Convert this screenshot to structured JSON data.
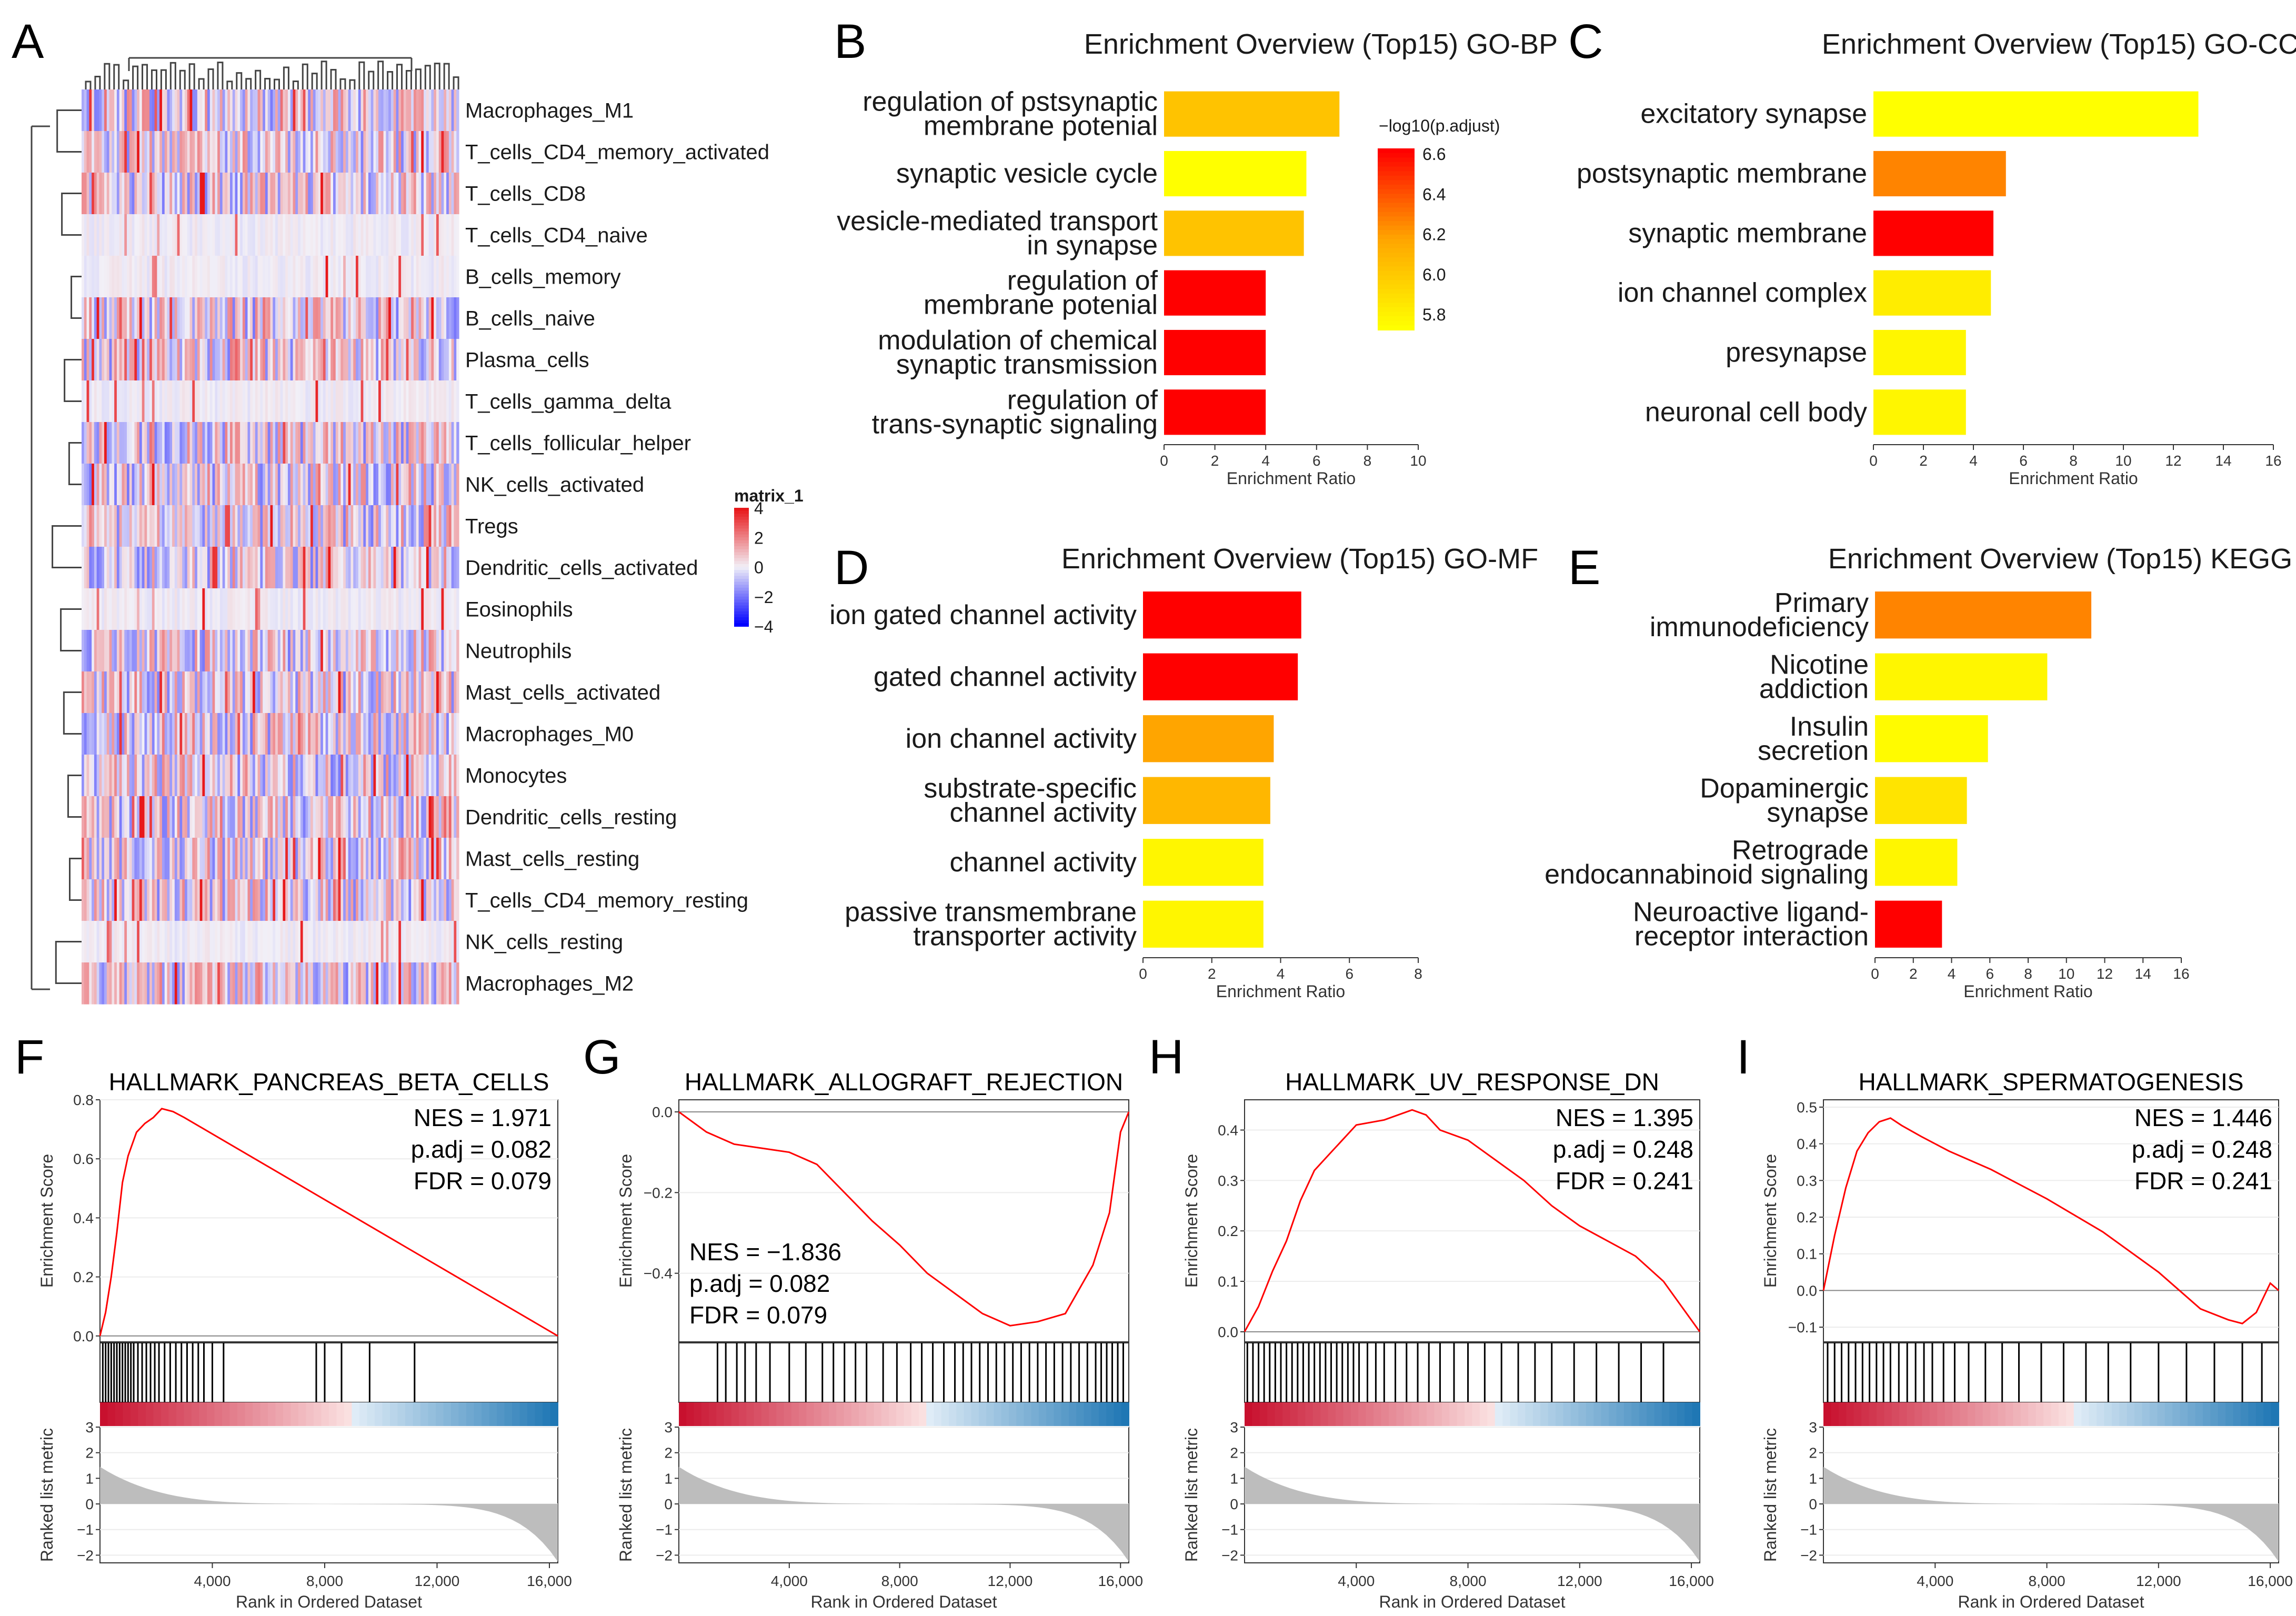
{
  "panel_letters": [
    "A",
    "B",
    "C",
    "D",
    "E",
    "F",
    "G",
    "H",
    "I"
  ],
  "colors": {
    "high": "#ff0000",
    "mid": "#ffa500",
    "low": "#ffff00",
    "hm_high": "#e8181a",
    "hm_mid": "#f2f0f7",
    "hm_low": "#0000ff",
    "gsea_line": "#ff0000",
    "gsea_red": "#c8102e",
    "gsea_blue": "#1f77b4",
    "gray": "#bdbdbd"
  },
  "chart_data": [
    {
      "id": "A",
      "type": "heatmap",
      "title": "",
      "rows": [
        "Macrophages_M1",
        "T_cells_CD4_memory_activated",
        "T_cells_CD8",
        "T_cells_CD4_naive",
        "B_cells_memory",
        "B_cells_naive",
        "Plasma_cells",
        "T_cells_gamma_delta",
        "T_cells_follicular_helper",
        "NK_cells_activated",
        "Tregs",
        "Dendritic_cells_activated",
        "Eosinophils",
        "Neutrophils",
        "Mast_cells_activated",
        "Macrophages_M0",
        "Monocytes",
        "Dendritic_cells_resting",
        "Mast_cells_resting",
        "T_cells_CD4_memory_resting",
        "NK_cells_resting",
        "Macrophages_M2"
      ],
      "legend": {
        "title": "matrix_1",
        "ticks": [
          "4",
          "2",
          "0",
          "−2",
          "−4"
        ],
        "range": [
          -4,
          4
        ]
      }
    },
    {
      "id": "B",
      "type": "bar",
      "title": "Enrichment Overview (Top15) GO-BP",
      "xlabel": "Enrichment Ratio",
      "xticks": [
        "0",
        "2",
        "4",
        "6",
        "8",
        "10"
      ],
      "xlim": [
        0,
        10
      ],
      "categories": [
        "regulation of pstsynaptic\nmembrane potenial",
        "synaptic vesicle cycle",
        "vesicle-mediated transport\nin synapse",
        "regulation of\nmembrane potenial",
        "modulation of chemical\nsynaptic transmission",
        "regulation of\ntrans-synaptic signaling"
      ],
      "values": [
        6.9,
        5.6,
        5.5,
        4.0,
        4.0,
        4.0
      ],
      "color_values": [
        6.0,
        5.7,
        6.0,
        6.6,
        6.6,
        6.6
      ],
      "legend": {
        "title": "−log10(p.adjust)",
        "ticks": [
          "6.6",
          "6.4",
          "6.2",
          "6.0",
          "5.8"
        ],
        "range": [
          5.7,
          6.6
        ]
      }
    },
    {
      "id": "C",
      "type": "bar",
      "title": "Enrichment Overview (Top15) GO-CC",
      "xlabel": "Enrichment Ratio",
      "xticks": [
        "0",
        "2",
        "4",
        "6",
        "8",
        "10",
        "12",
        "14",
        "16"
      ],
      "xlim": [
        0,
        16
      ],
      "categories": [
        "excitatory synapse",
        "postsynaptic membrane",
        "synaptic membrane",
        "ion channel complex",
        "presynapse",
        "neuronal cell body"
      ],
      "values": [
        13.0,
        5.3,
        4.8,
        4.7,
        3.7,
        3.7
      ],
      "color_values": [
        0.0,
        0.6,
        1.0,
        0.1,
        0.05,
        0.05
      ]
    },
    {
      "id": "D",
      "type": "bar",
      "title": "Enrichment Overview (Top15) GO-MF",
      "xlabel": "Enrichment Ratio",
      "xticks": [
        "0",
        "2",
        "4",
        "6",
        "8"
      ],
      "xlim": [
        0,
        8
      ],
      "categories": [
        "ion gated channel activity",
        "gated channel activity",
        "ion channel activity",
        "substrate-specific\nchannel activity",
        "channel activity",
        "passive transmembrane\ntransporter activity"
      ],
      "values": [
        4.6,
        4.5,
        3.8,
        3.7,
        3.5,
        3.5
      ],
      "color_values": [
        1.0,
        1.0,
        0.5,
        0.4,
        0.05,
        0.05
      ]
    },
    {
      "id": "E",
      "type": "bar",
      "title": "Enrichment Overview (Top15) KEGG",
      "xlabel": "Enrichment Ratio",
      "xticks": [
        "0",
        "2",
        "4",
        "6",
        "8",
        "10",
        "12",
        "14",
        "16"
      ],
      "xlim": [
        0,
        16
      ],
      "categories": [
        "Primary\nimmunodeficiency",
        "Nicotine\naddiction",
        "Insulin\nsecretion",
        "Dopaminergic\nsynapse",
        "Retrograde\nendocannabinoid signaling",
        "Neuroactive ligand-\nreceptor interaction"
      ],
      "values": [
        11.3,
        9.0,
        5.9,
        4.8,
        4.3,
        3.5
      ],
      "color_values": [
        0.6,
        0.05,
        0.02,
        0.15,
        0.05,
        1.0
      ]
    },
    {
      "id": "F",
      "type": "line",
      "title": "HALLMARK_PANCREAS_BETA_CELLS",
      "stats": [
        "NES = 1.971",
        "p.adj = 0.082",
        "FDR = 0.079"
      ],
      "ylabel": "Enrichment Score",
      "ylabel2": "Ranked list metric",
      "xlabel": "Rank in Ordered Dataset",
      "yticks": [
        "0.0",
        "0.2",
        "0.4",
        "0.6",
        "0.8"
      ],
      "ylim": [
        -0.02,
        0.8
      ],
      "xticks": [
        "4,000",
        "8,000",
        "12,000",
        "16,000"
      ],
      "xlim": [
        0,
        16300
      ],
      "x": [
        0,
        200,
        400,
        600,
        800,
        1000,
        1300,
        1600,
        1900,
        2200,
        2600,
        3000,
        16300
      ],
      "y": [
        0,
        0.08,
        0.2,
        0.35,
        0.52,
        0.61,
        0.69,
        0.72,
        0.74,
        0.77,
        0.76,
        0.74,
        0.0
      ],
      "hits_x": [
        100,
        200,
        300,
        400,
        500,
        600,
        700,
        800,
        900,
        1000,
        1100,
        1200,
        1350,
        1500,
        1650,
        1800,
        1950,
        2100,
        2300,
        2500,
        2700,
        2900,
        3100,
        3300,
        3500,
        3700,
        4000,
        4400,
        7700,
        8000,
        8600,
        9600,
        11200
      ],
      "metric_ylim": [
        -2.3,
        3
      ]
    },
    {
      "id": "G",
      "type": "line",
      "title": "HALLMARK_ALLOGRAFT_REJECTION",
      "stats": [
        "NES = −1.836",
        "p.adj = 0.082",
        "FDR = 0.079"
      ],
      "ylabel": "Enrichment Score",
      "ylabel2": "Ranked list metric",
      "xlabel": "Rank in Ordered Dataset",
      "yticks": [
        "0.0",
        "−0.2",
        "−0.4"
      ],
      "ylim": [
        -0.57,
        0.03
      ],
      "xticks": [
        "4,000",
        "8,000",
        "12,000",
        "16,000"
      ],
      "xlim": [
        0,
        16300
      ],
      "x": [
        0,
        1000,
        2000,
        3000,
        4000,
        5000,
        6000,
        7000,
        8000,
        9000,
        10000,
        11000,
        12000,
        13000,
        14000,
        15000,
        15600,
        16000,
        16300
      ],
      "y": [
        0,
        -0.05,
        -0.08,
        -0.09,
        -0.1,
        -0.13,
        -0.2,
        -0.27,
        -0.33,
        -0.4,
        -0.45,
        -0.5,
        -0.53,
        -0.52,
        -0.5,
        -0.38,
        -0.25,
        -0.05,
        0.0
      ],
      "hits_x": [
        1400,
        1700,
        2100,
        2400,
        2800,
        3300,
        4000,
        4600,
        5200,
        5600,
        6000,
        6400,
        6800,
        7400,
        7900,
        8400,
        8800,
        9200,
        9600,
        10000,
        10300,
        10600,
        10900,
        11200,
        11500,
        11800,
        12100,
        12400,
        12700,
        13000,
        13300,
        13600,
        13900,
        14200,
        14500,
        14800,
        15100,
        15300,
        15500,
        15700,
        15900,
        16100
      ],
      "metric_ylim": [
        -2.3,
        3
      ]
    },
    {
      "id": "H",
      "type": "line",
      "title": "HALLMARK_UV_RESPONSE_DN",
      "stats": [
        "NES = 1.395",
        "p.adj = 0.248",
        "FDR = 0.241"
      ],
      "ylabel": "Enrichment Score",
      "ylabel2": "Ranked list metric",
      "xlabel": "Rank in Ordered Dataset",
      "yticks": [
        "0.0",
        "0.1",
        "0.2",
        "0.3",
        "0.4"
      ],
      "ylim": [
        -0.02,
        0.46
      ],
      "xticks": [
        "4,000",
        "8,000",
        "12,000",
        "16,000"
      ],
      "xlim": [
        0,
        16300
      ],
      "x": [
        0,
        500,
        1000,
        1500,
        2000,
        2500,
        3000,
        3500,
        4000,
        5000,
        6000,
        6500,
        7000,
        8000,
        9000,
        10000,
        11000,
        12000,
        13000,
        14000,
        15000,
        16300
      ],
      "y": [
        0,
        0.05,
        0.12,
        0.18,
        0.26,
        0.32,
        0.35,
        0.38,
        0.41,
        0.42,
        0.44,
        0.43,
        0.4,
        0.38,
        0.34,
        0.3,
        0.25,
        0.21,
        0.18,
        0.15,
        0.1,
        0.0
      ],
      "hits_x": [
        100,
        300,
        500,
        700,
        900,
        1100,
        1300,
        1500,
        1700,
        1900,
        2100,
        2300,
        2500,
        2700,
        2900,
        3100,
        3300,
        3500,
        3700,
        3900,
        4100,
        4400,
        4700,
        5000,
        5400,
        5800,
        6200,
        6600,
        7000,
        7500,
        8000,
        8600,
        9200,
        9800,
        10400,
        11000,
        11800,
        12600,
        13400,
        14200,
        15000
      ],
      "metric_ylim": [
        -2.3,
        3
      ]
    },
    {
      "id": "I",
      "type": "line",
      "title": "HALLMARK_SPERMATOGENESIS",
      "stats": [
        "NES = 1.446",
        "p.adj = 0.248",
        "FDR = 0.241"
      ],
      "ylabel": "Enrichment Score",
      "ylabel2": "Ranked list metric",
      "xlabel": "Rank in Ordered Dataset",
      "yticks": [
        "−0.1",
        "0.0",
        "0.1",
        "0.2",
        "0.3",
        "0.4",
        "0.5"
      ],
      "ylim": [
        -0.14,
        0.52
      ],
      "xticks": [
        "4,000",
        "8,000",
        "12,000",
        "16,000"
      ],
      "xlim": [
        0,
        16300
      ],
      "x": [
        0,
        400,
        800,
        1200,
        1600,
        2000,
        2400,
        2800,
        3500,
        4500,
        6000,
        8000,
        10000,
        12000,
        13500,
        14500,
        15000,
        15500,
        16000,
        16300
      ],
      "y": [
        0,
        0.15,
        0.28,
        0.38,
        0.43,
        0.46,
        0.47,
        0.45,
        0.42,
        0.38,
        0.33,
        0.25,
        0.16,
        0.05,
        -0.05,
        -0.08,
        -0.09,
        -0.06,
        0.02,
        0.0
      ],
      "hits_x": [
        150,
        400,
        650,
        900,
        1150,
        1400,
        1650,
        1900,
        2150,
        2400,
        2700,
        3000,
        3300,
        3600,
        3900,
        4300,
        4700,
        5200,
        5800,
        6400,
        7000,
        7800,
        8600,
        9400,
        10200,
        11000,
        12000,
        13000,
        14000,
        15000,
        15700
      ],
      "metric_ylim": [
        -2.3,
        3
      ]
    }
  ]
}
